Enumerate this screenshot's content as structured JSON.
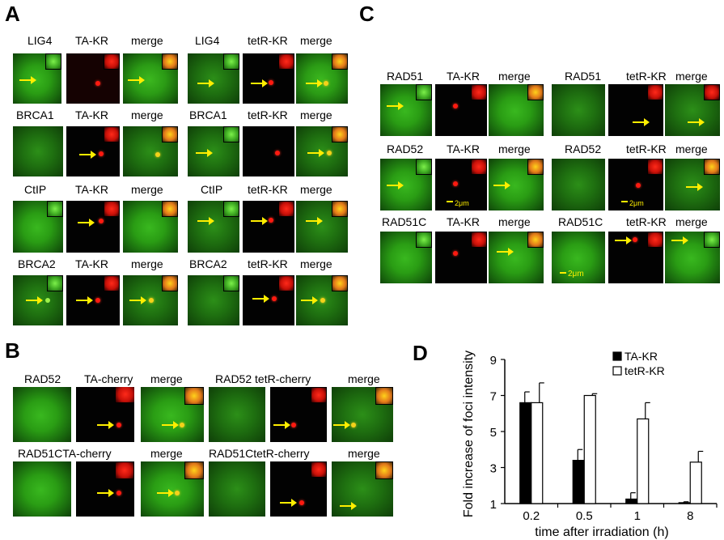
{
  "panels": {
    "a": "A",
    "b": "B",
    "c": "C",
    "d": "D"
  },
  "panelA": {
    "left_headers": [
      "LIG4",
      "TA-KR",
      "merge"
    ],
    "right_headers": [
      "LIG4",
      "tetR-KR",
      "merge"
    ],
    "rows": [
      {
        "left": [
          "LIG4",
          "TA-KR",
          "merge"
        ],
        "right": [
          "LIG4",
          "tetR-KR",
          "merge"
        ]
      },
      {
        "left": [
          "BRCA1",
          "TA-KR",
          "merge"
        ],
        "right": [
          "BRCA1",
          "tetR-KR",
          "merge"
        ]
      },
      {
        "left": [
          "CtIP",
          "TA-KR",
          "merge"
        ],
        "right": [
          "CtIP",
          "tetR-KR",
          "merge"
        ]
      },
      {
        "left": [
          "BRCA2",
          "TA-KR",
          "merge"
        ],
        "right": [
          "BRCA2",
          "tetR-KR",
          "merge"
        ]
      }
    ]
  },
  "panelB": {
    "rows": [
      {
        "left": [
          "RAD52",
          "TA-cherry",
          "merge"
        ],
        "right": [
          "RAD52 tetR-cherry",
          "merge"
        ]
      },
      {
        "left": [
          "RAD51CTA-cherry",
          "merge"
        ],
        "right": [
          "RAD51CtetR-cherry",
          "merge"
        ]
      }
    ]
  },
  "panelC": {
    "rows": [
      {
        "left": [
          "RAD51",
          "TA-KR",
          "merge"
        ],
        "right": [
          "RAD51",
          "tetR-KR",
          "merge"
        ]
      },
      {
        "left": [
          "RAD52",
          "TA-KR",
          "merge"
        ],
        "right": [
          "RAD52",
          "tetR-KR",
          "merge"
        ]
      },
      {
        "left": [
          "RAD51C",
          "TA-KR",
          "merge"
        ],
        "right": [
          "RAD51C",
          "tetR-KR",
          "merge"
        ]
      }
    ],
    "scale_label": "2μm"
  },
  "chart_data": {
    "type": "bar",
    "categories": [
      "0.2",
      "0.5",
      "1",
      "8"
    ],
    "series": [
      {
        "name": "TA-KR",
        "values": [
          6.6,
          3.4,
          1.25,
          1.05
        ],
        "errors": [
          0.6,
          0.6,
          0.35,
          0.05
        ],
        "color": "#000000"
      },
      {
        "name": "tetR-KR",
        "values": [
          6.6,
          7.0,
          5.7,
          3.3
        ],
        "errors": [
          1.1,
          0.1,
          0.9,
          0.6
        ],
        "color": "#ffffff"
      }
    ],
    "xlabel": "time after irradiation (h)",
    "ylabel": "Fold increase of foci intensity",
    "yticks": [
      1,
      3,
      5,
      7,
      9
    ],
    "ylim": [
      1,
      9
    ],
    "legend": "top-right"
  }
}
